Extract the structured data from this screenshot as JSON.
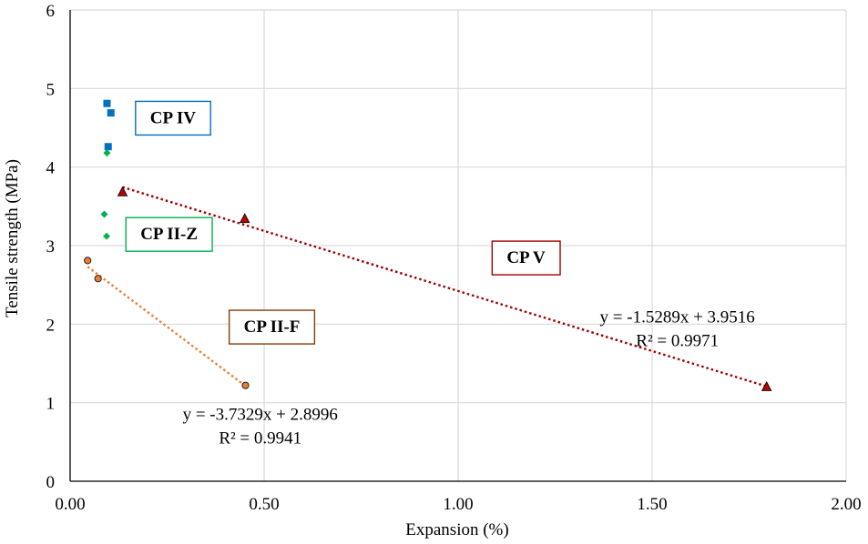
{
  "chart_data": {
    "type": "scatter",
    "title": "",
    "xlabel": "Expansion (%)",
    "ylabel": "Tensile strength (MPa)",
    "xlim": [
      0,
      2
    ],
    "ylim": [
      0,
      6
    ],
    "x_ticks": [
      0,
      0.5,
      1,
      1.5,
      2
    ],
    "x_tick_labels": [
      "0.00",
      "0.50",
      "1.00",
      "1.50",
      "2.00"
    ],
    "y_ticks": [
      0,
      1,
      2,
      3,
      4,
      5,
      6
    ],
    "y_tick_labels": [
      "0",
      "1",
      "2",
      "3",
      "4",
      "5",
      "6"
    ],
    "grid": true,
    "legend": "none",
    "series": [
      {
        "name": "CP IV",
        "marker": "square",
        "color": "#0070C0",
        "points": [
          [
            0.095,
            4.81
          ],
          [
            0.105,
            4.69
          ],
          [
            0.098,
            4.26
          ]
        ]
      },
      {
        "name": "CP II-Z",
        "marker": "diamond",
        "color": "#00B050",
        "points": [
          [
            0.095,
            4.18
          ],
          [
            0.088,
            3.4
          ],
          [
            0.094,
            3.12
          ]
        ]
      },
      {
        "name": "CP II-F",
        "marker": "circle",
        "color": "#ED7D31",
        "points": [
          [
            0.045,
            2.81
          ],
          [
            0.072,
            2.58
          ],
          [
            0.452,
            1.22
          ]
        ],
        "trendline": {
          "slope": -3.7329,
          "intercept": 2.8996,
          "x_range": [
            0.045,
            0.452
          ],
          "color": "#ED7D31"
        },
        "equation": "y = -3.7329x + 2.8996",
        "r2": "R² = 0.9941"
      },
      {
        "name": "CP V",
        "marker": "triangle",
        "color": "#C00000",
        "points": [
          [
            0.135,
            3.68
          ],
          [
            0.45,
            3.34
          ],
          [
            1.795,
            1.2
          ]
        ],
        "trendline": {
          "slope": -1.5289,
          "intercept": 3.9516,
          "x_range": [
            0.135,
            1.795
          ],
          "color": "#A00000"
        },
        "equation": "y = -1.5289x + 3.9516",
        "r2": "R² = 0.9971"
      }
    ],
    "annotations": [
      {
        "text": "CP IV",
        "border_color": "#0070C0",
        "x": 0.265,
        "y": 4.64
      },
      {
        "text": "CP II-Z",
        "border_color": "#00B050",
        "x": 0.255,
        "y": 3.16
      },
      {
        "text": "CP II-F",
        "border_color": "#843C0C",
        "x": 0.52,
        "y": 1.98
      },
      {
        "text": "CP V",
        "border_color": "#A00000",
        "x": 1.175,
        "y": 2.86
      }
    ]
  }
}
